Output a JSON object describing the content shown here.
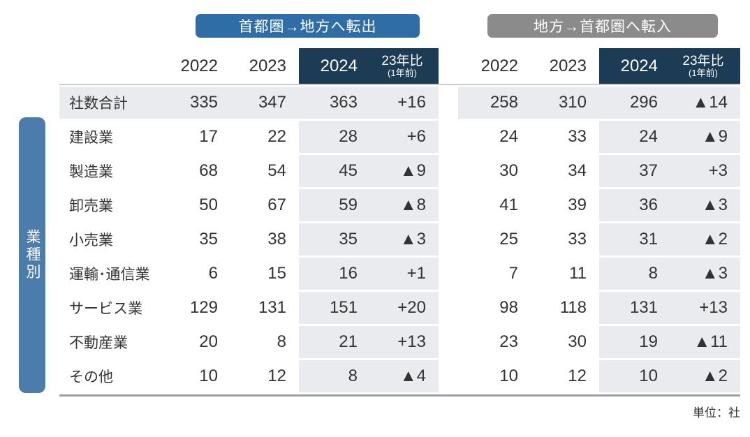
{
  "badges": {
    "out_label": "首都圏→地方へ転出",
    "in_label": "地方→首都圏へ転入"
  },
  "side_label": "業種別",
  "unit_note": "単位：社",
  "colors": {
    "badge_blue": "#2e6da6",
    "badge_gray": "#8b8b8b",
    "header_navy": "#1c3b54",
    "highlight_gray": "#e9ebee",
    "side_bar_blue": "#4c7cab"
  },
  "table": {
    "columns": {
      "years": [
        "2022",
        "2023",
        "2024"
      ],
      "diff_label": "23年比",
      "diff_sublabel": "(1年前)"
    },
    "col_keys": [
      "2022",
      "2023",
      "2024",
      "diff"
    ],
    "rows": [
      {
        "label": "社数合計",
        "total": true,
        "out": [
          "335",
          "347",
          "363",
          "+16"
        ],
        "in": [
          "258",
          "310",
          "296",
          "▲14"
        ]
      },
      {
        "label": "建設業",
        "total": false,
        "out": [
          "17",
          "22",
          "28",
          "+6"
        ],
        "in": [
          "24",
          "33",
          "24",
          "▲9"
        ]
      },
      {
        "label": "製造業",
        "total": false,
        "out": [
          "68",
          "54",
          "45",
          "▲9"
        ],
        "in": [
          "30",
          "34",
          "37",
          "+3"
        ]
      },
      {
        "label": "卸売業",
        "total": false,
        "out": [
          "50",
          "67",
          "59",
          "▲8"
        ],
        "in": [
          "41",
          "39",
          "36",
          "▲3"
        ]
      },
      {
        "label": "小売業",
        "total": false,
        "out": [
          "35",
          "38",
          "35",
          "▲3"
        ],
        "in": [
          "25",
          "33",
          "31",
          "▲2"
        ]
      },
      {
        "label": "運輸･通信業",
        "total": false,
        "out": [
          "6",
          "15",
          "16",
          "+1"
        ],
        "in": [
          "7",
          "11",
          "8",
          "▲3"
        ]
      },
      {
        "label": "サービス業",
        "total": false,
        "out": [
          "129",
          "131",
          "151",
          "+20"
        ],
        "in": [
          "98",
          "118",
          "131",
          "+13"
        ]
      },
      {
        "label": "不動産業",
        "total": false,
        "out": [
          "20",
          "8",
          "21",
          "+13"
        ],
        "in": [
          "23",
          "30",
          "19",
          "▲11"
        ]
      },
      {
        "label": "その他",
        "total": false,
        "out": [
          "10",
          "12",
          "8",
          "▲4"
        ],
        "in": [
          "10",
          "12",
          "10",
          "▲2"
        ]
      }
    ]
  },
  "chart_data": {
    "type": "table",
    "title": "業種別 首都圏⇔地方 本社移転社数",
    "unit": "社",
    "categories": [
      "社数合計",
      "建設業",
      "製造業",
      "卸売業",
      "小売業",
      "運輸･通信業",
      "サービス業",
      "不動産業",
      "その他"
    ],
    "series": [
      {
        "name": "首都圏→地方へ転出 2022",
        "values": [
          335,
          17,
          68,
          50,
          35,
          6,
          129,
          20,
          10
        ]
      },
      {
        "name": "首都圏→地方へ転出 2023",
        "values": [
          347,
          22,
          54,
          67,
          38,
          15,
          131,
          8,
          12
        ]
      },
      {
        "name": "首都圏→地方へ転出 2024",
        "values": [
          363,
          28,
          45,
          59,
          35,
          16,
          151,
          21,
          8
        ]
      },
      {
        "name": "首都圏→地方へ転出 23年比(1年前)",
        "values": [
          16,
          6,
          -9,
          -8,
          -3,
          1,
          20,
          13,
          -4
        ]
      },
      {
        "name": "地方→首都圏へ転入 2022",
        "values": [
          258,
          24,
          30,
          41,
          25,
          7,
          98,
          23,
          10
        ]
      },
      {
        "name": "地方→首都圏へ転入 2023",
        "values": [
          310,
          33,
          34,
          39,
          33,
          11,
          118,
          30,
          12
        ]
      },
      {
        "name": "地方→首都圏へ転入 2024",
        "values": [
          296,
          24,
          37,
          36,
          31,
          8,
          131,
          19,
          10
        ]
      },
      {
        "name": "地方→首都圏へ転入 23年比(1年前)",
        "values": [
          -14,
          -9,
          3,
          -3,
          -2,
          -3,
          13,
          -11,
          -2
        ]
      }
    ],
    "layout_hints": {
      "negative_marker": "▲",
      "highlighted_columns": [
        "2024",
        "23年比(1年前)"
      ],
      "row_axis_label": "業種別"
    }
  }
}
